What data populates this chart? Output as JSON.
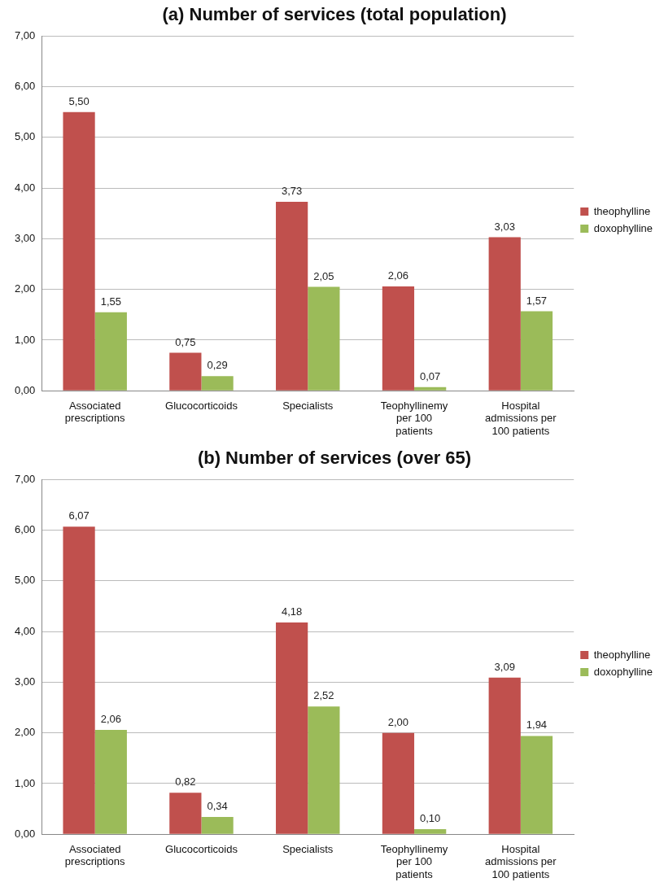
{
  "chart_data": [
    {
      "type": "bar",
      "title": "(a) Number of services (total population)",
      "categories": [
        "Associated prescriptions",
        "Glucocorticoids",
        "Specialists",
        "Teophyllinemy per 100 patients",
        "Hospital admissions per 100 patients"
      ],
      "series": [
        {
          "name": "theophylline",
          "color": "#c0504d",
          "values": [
            5.5,
            0.75,
            3.73,
            2.06,
            3.03
          ],
          "value_labels": [
            "5,50",
            "0,75",
            "3,73",
            "2,06",
            "3,03"
          ]
        },
        {
          "name": "doxophylline",
          "color": "#9bbb59",
          "values": [
            1.55,
            0.29,
            2.05,
            0.07,
            1.57
          ],
          "value_labels": [
            "1,55",
            "0,29",
            "2,05",
            "0,07",
            "1,57"
          ]
        }
      ],
      "ylim": [
        0,
        7
      ],
      "yticks": [
        {
          "value": 0,
          "label": "0,00"
        },
        {
          "value": 1,
          "label": "1,00"
        },
        {
          "value": 2,
          "label": "2,00"
        },
        {
          "value": 3,
          "label": "3,00"
        },
        {
          "value": 4,
          "label": "4,00"
        },
        {
          "value": 5,
          "label": "5,00"
        },
        {
          "value": 6,
          "label": "6,00"
        },
        {
          "value": 7,
          "label": "7,00"
        }
      ],
      "grid": "y",
      "legend": "right"
    },
    {
      "type": "bar",
      "title": "(b) Number of services (over 65)",
      "categories": [
        "Associated prescriptions",
        "Glucocorticoids",
        "Specialists",
        "Teophyllinemy per 100 patients",
        "Hospital admissions per 100 patients"
      ],
      "series": [
        {
          "name": "theophylline",
          "color": "#c0504d",
          "values": [
            6.07,
            0.82,
            4.18,
            2.0,
            3.09
          ],
          "value_labels": [
            "6,07",
            "0,82",
            "4,18",
            "2,00",
            "3,09"
          ]
        },
        {
          "name": "doxophylline",
          "color": "#9bbb59",
          "values": [
            2.06,
            0.34,
            2.52,
            0.1,
            1.94
          ],
          "value_labels": [
            "2,06",
            "0,34",
            "2,52",
            "0,10",
            "1,94"
          ]
        }
      ],
      "ylim": [
        0,
        7
      ],
      "yticks": [
        {
          "value": 0,
          "label": "0,00"
        },
        {
          "value": 1,
          "label": "1,00"
        },
        {
          "value": 2,
          "label": "2,00"
        },
        {
          "value": 3,
          "label": "3,00"
        },
        {
          "value": 4,
          "label": "4,00"
        },
        {
          "value": 5,
          "label": "5,00"
        },
        {
          "value": 6,
          "label": "6,00"
        },
        {
          "value": 7,
          "label": "7,00"
        }
      ],
      "grid": "y",
      "legend": "right"
    }
  ]
}
